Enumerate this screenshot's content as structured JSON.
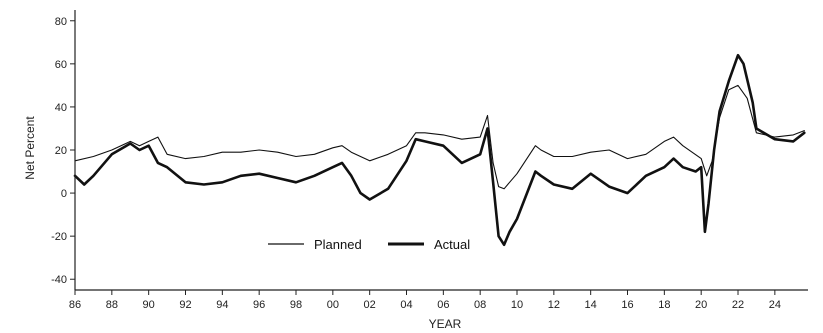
{
  "chart_data": {
    "type": "line",
    "xlabel": "YEAR",
    "ylabel": "Net Percent",
    "xlim": [
      1986,
      2025.8
    ],
    "ylim": [
      -45,
      85
    ],
    "x_ticks": [
      {
        "value": 1986,
        "label": "86"
      },
      {
        "value": 1988,
        "label": "88"
      },
      {
        "value": 1990,
        "label": "90"
      },
      {
        "value": 1992,
        "label": "92"
      },
      {
        "value": 1994,
        "label": "94"
      },
      {
        "value": 1996,
        "label": "96"
      },
      {
        "value": 1998,
        "label": "98"
      },
      {
        "value": 2000,
        "label": "00"
      },
      {
        "value": 2002,
        "label": "02"
      },
      {
        "value": 2004,
        "label": "04"
      },
      {
        "value": 2006,
        "label": "06"
      },
      {
        "value": 2008,
        "label": "08"
      },
      {
        "value": 2010,
        "label": "10"
      },
      {
        "value": 2012,
        "label": "12"
      },
      {
        "value": 2014,
        "label": "14"
      },
      {
        "value": 2016,
        "label": "16"
      },
      {
        "value": 2018,
        "label": "18"
      },
      {
        "value": 2020,
        "label": "20"
      },
      {
        "value": 2022,
        "label": "22"
      },
      {
        "value": 2024,
        "label": "24"
      }
    ],
    "y_ticks": [
      -40,
      -20,
      0,
      20,
      40,
      60,
      80
    ],
    "grid": false,
    "legend_position": "bottom-center",
    "series": [
      {
        "name": "Planned",
        "line_weight": "thin",
        "x": [
          1986.0,
          1987.0,
          1988.0,
          1989.0,
          1989.5,
          1990.0,
          1990.5,
          1991.0,
          1992.0,
          1993.0,
          1994.0,
          1995.0,
          1996.0,
          1997.0,
          1998.0,
          1999.0,
          2000.0,
          2000.5,
          2001.0,
          2002.0,
          2003.0,
          2004.0,
          2004.5,
          2005.0,
          2006.0,
          2007.0,
          2008.0,
          2008.4,
          2008.7,
          2009.0,
          2009.3,
          2009.6,
          2010.0,
          2011.0,
          2011.3,
          2012.0,
          2013.0,
          2014.0,
          2015.0,
          2016.0,
          2017.0,
          2018.0,
          2018.5,
          2019.0,
          2020.0,
          2020.3,
          2020.6,
          2021.0,
          2021.5,
          2022.0,
          2022.5,
          2023.0,
          2024.0,
          2025.0,
          2025.6
        ],
        "y": [
          15,
          17,
          20,
          24,
          22,
          24,
          26,
          18,
          16,
          17,
          19,
          19,
          20,
          19,
          17,
          18,
          21,
          22,
          19,
          15,
          18,
          22,
          28,
          28,
          27,
          25,
          26,
          36,
          14,
          3,
          2,
          5,
          9,
          22,
          20,
          17,
          17,
          19,
          20,
          16,
          18,
          24,
          26,
          22,
          16,
          8,
          15,
          35,
          48,
          50,
          44,
          28,
          26,
          27,
          29
        ]
      },
      {
        "name": "Actual",
        "line_weight": "thick",
        "x": [
          1986.0,
          1986.5,
          1987.0,
          1988.0,
          1989.0,
          1989.5,
          1990.0,
          1990.5,
          1991.0,
          1992.0,
          1993.0,
          1994.0,
          1995.0,
          1996.0,
          1997.0,
          1998.0,
          1999.0,
          2000.0,
          2000.5,
          2001.0,
          2001.5,
          2002.0,
          2003.0,
          2004.0,
          2004.5,
          2005.0,
          2006.0,
          2007.0,
          2008.0,
          2008.4,
          2008.7,
          2009.0,
          2009.3,
          2009.6,
          2010.0,
          2011.0,
          2011.3,
          2012.0,
          2013.0,
          2014.0,
          2015.0,
          2016.0,
          2017.0,
          2018.0,
          2018.5,
          2019.0,
          2019.7,
          2020.0,
          2020.2,
          2020.4,
          2020.7,
          2021.0,
          2021.5,
          2022.0,
          2022.3,
          2022.8,
          2023.0,
          2024.0,
          2025.0,
          2025.6
        ],
        "y": [
          8,
          4,
          8,
          18,
          23,
          20,
          22,
          14,
          12,
          5,
          4,
          5,
          8,
          9,
          7,
          5,
          8,
          12,
          14,
          8,
          0,
          -3,
          2,
          15,
          25,
          24,
          22,
          14,
          18,
          30,
          5,
          -20,
          -24,
          -18,
          -12,
          10,
          8,
          4,
          2,
          9,
          3,
          0,
          8,
          12,
          16,
          12,
          10,
          12,
          -18,
          -5,
          20,
          38,
          52,
          64,
          60,
          42,
          30,
          25,
          24,
          28
        ]
      }
    ]
  }
}
